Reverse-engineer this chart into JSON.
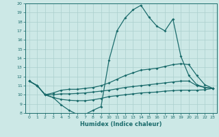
{
  "xlabel": "Humidex (Indice chaleur)",
  "bg_color": "#cce8e6",
  "line_color": "#1a6b6b",
  "grid_color": "#aacfcd",
  "xlim": [
    -0.5,
    23.5
  ],
  "ylim": [
    8,
    20
  ],
  "yticks": [
    8,
    9,
    10,
    11,
    12,
    13,
    14,
    15,
    16,
    17,
    18,
    19,
    20
  ],
  "xticks": [
    0,
    1,
    2,
    3,
    4,
    5,
    6,
    7,
    8,
    9,
    10,
    11,
    12,
    13,
    14,
    15,
    16,
    17,
    18,
    19,
    20,
    21,
    22,
    23
  ],
  "line1_x": [
    0,
    1,
    2,
    3,
    4,
    5,
    6,
    7,
    8,
    9,
    10,
    11,
    12,
    13,
    14,
    15,
    16,
    17,
    18,
    19,
    20,
    21,
    22,
    23
  ],
  "line1_y": [
    11.5,
    11.0,
    10.0,
    9.7,
    8.9,
    8.3,
    7.85,
    7.85,
    8.3,
    8.7,
    13.8,
    17.0,
    18.4,
    19.3,
    19.8,
    18.5,
    17.5,
    17.0,
    18.3,
    14.2,
    12.1,
    11.1,
    10.8,
    10.7
  ],
  "line2_x": [
    0,
    1,
    2,
    3,
    4,
    5,
    6,
    7,
    8,
    9,
    10,
    11,
    12,
    13,
    14,
    15,
    16,
    17,
    18,
    19,
    20,
    21,
    22,
    23
  ],
  "line2_y": [
    11.5,
    11.0,
    10.0,
    10.2,
    10.5,
    10.6,
    10.6,
    10.7,
    10.8,
    11.0,
    11.3,
    11.7,
    12.1,
    12.4,
    12.7,
    12.8,
    12.9,
    13.1,
    13.3,
    13.4,
    13.3,
    12.1,
    11.1,
    10.7
  ],
  "line3_x": [
    0,
    1,
    2,
    3,
    4,
    5,
    6,
    7,
    8,
    9,
    10,
    11,
    12,
    13,
    14,
    15,
    16,
    17,
    18,
    19,
    20,
    21,
    22,
    23
  ],
  "line3_y": [
    11.5,
    11.0,
    10.0,
    10.0,
    10.1,
    10.1,
    10.15,
    10.2,
    10.3,
    10.4,
    10.5,
    10.65,
    10.8,
    10.9,
    11.0,
    11.1,
    11.2,
    11.3,
    11.4,
    11.5,
    11.5,
    11.0,
    10.8,
    10.7
  ],
  "line4_x": [
    0,
    1,
    2,
    3,
    4,
    5,
    6,
    7,
    8,
    9,
    10,
    11,
    12,
    13,
    14,
    15,
    16,
    17,
    18,
    19,
    20,
    21,
    22,
    23
  ],
  "line4_y": [
    11.5,
    11.0,
    10.0,
    9.7,
    9.5,
    9.4,
    9.35,
    9.35,
    9.45,
    9.6,
    9.8,
    9.9,
    10.0,
    10.1,
    10.2,
    10.25,
    10.3,
    10.4,
    10.45,
    10.5,
    10.5,
    10.5,
    10.55,
    10.7
  ]
}
